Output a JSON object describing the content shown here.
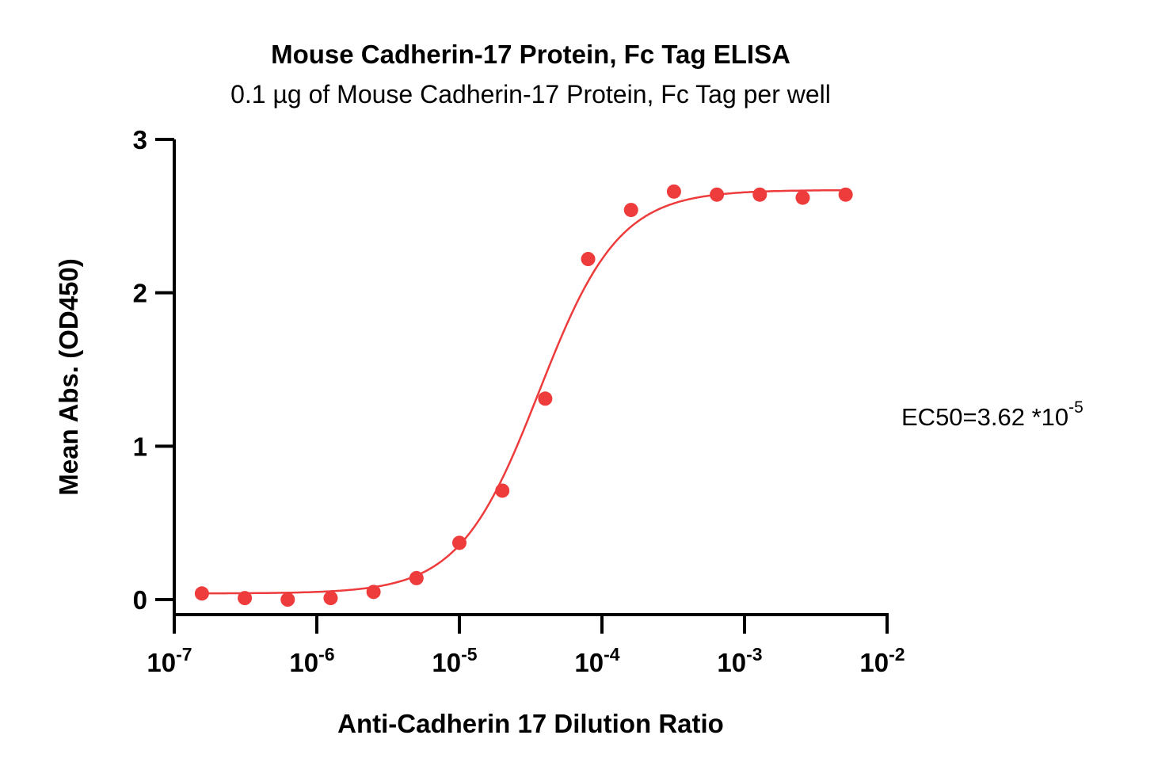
{
  "chart_data": {
    "type": "scatter",
    "title": "Mouse Cadherin-17 Protein, Fc Tag ELISA",
    "subtitle": "0.1 µg of Mouse Cadherin-17 Protein, Fc Tag per well",
    "xlabel": "Anti-Cadherin 17 Dilution Ratio",
    "ylabel": "Mean Abs. (OD450)",
    "xscale": "log",
    "xlim": [
      1e-07,
      0.01
    ],
    "ylim": [
      0,
      3
    ],
    "x_ticks": [
      {
        "base": "10",
        "exp": "-7",
        "value": 1e-07
      },
      {
        "base": "10",
        "exp": "-6",
        "value": 1e-06
      },
      {
        "base": "10",
        "exp": "-5",
        "value": 1e-05
      },
      {
        "base": "10",
        "exp": "-4",
        "value": 0.0001
      },
      {
        "base": "10",
        "exp": "-3",
        "value": 0.001
      },
      {
        "base": "10",
        "exp": "-2",
        "value": 0.01
      }
    ],
    "y_ticks": [
      {
        "label": "0",
        "value": 0
      },
      {
        "label": "1",
        "value": 1
      },
      {
        "label": "2",
        "value": 2
      },
      {
        "label": "3",
        "value": 3
      }
    ],
    "series": [
      {
        "name": "Mouse Cadherin-17",
        "color": "#ee3b3b",
        "x": [
          1.5625e-07,
          3.125e-07,
          6.25e-07,
          1.25e-06,
          2.5e-06,
          5e-06,
          1e-05,
          2e-05,
          4e-05,
          8e-05,
          0.00016,
          0.00032,
          0.00064,
          0.00128,
          0.00256,
          0.00512
        ],
        "y": [
          0.04,
          0.01,
          0.0,
          0.01,
          0.05,
          0.14,
          0.37,
          0.71,
          1.31,
          2.22,
          2.54,
          2.66,
          2.64,
          2.64,
          2.62,
          2.64
        ]
      }
    ],
    "fit": {
      "type": "4PL",
      "bottom": 0.04,
      "top": 2.67,
      "ec50": 3.62e-05,
      "hill": 1.55
    },
    "annotation": {
      "text": "EC50=3.62 *10",
      "exp": "-5"
    },
    "grid": false,
    "legend": "none"
  }
}
